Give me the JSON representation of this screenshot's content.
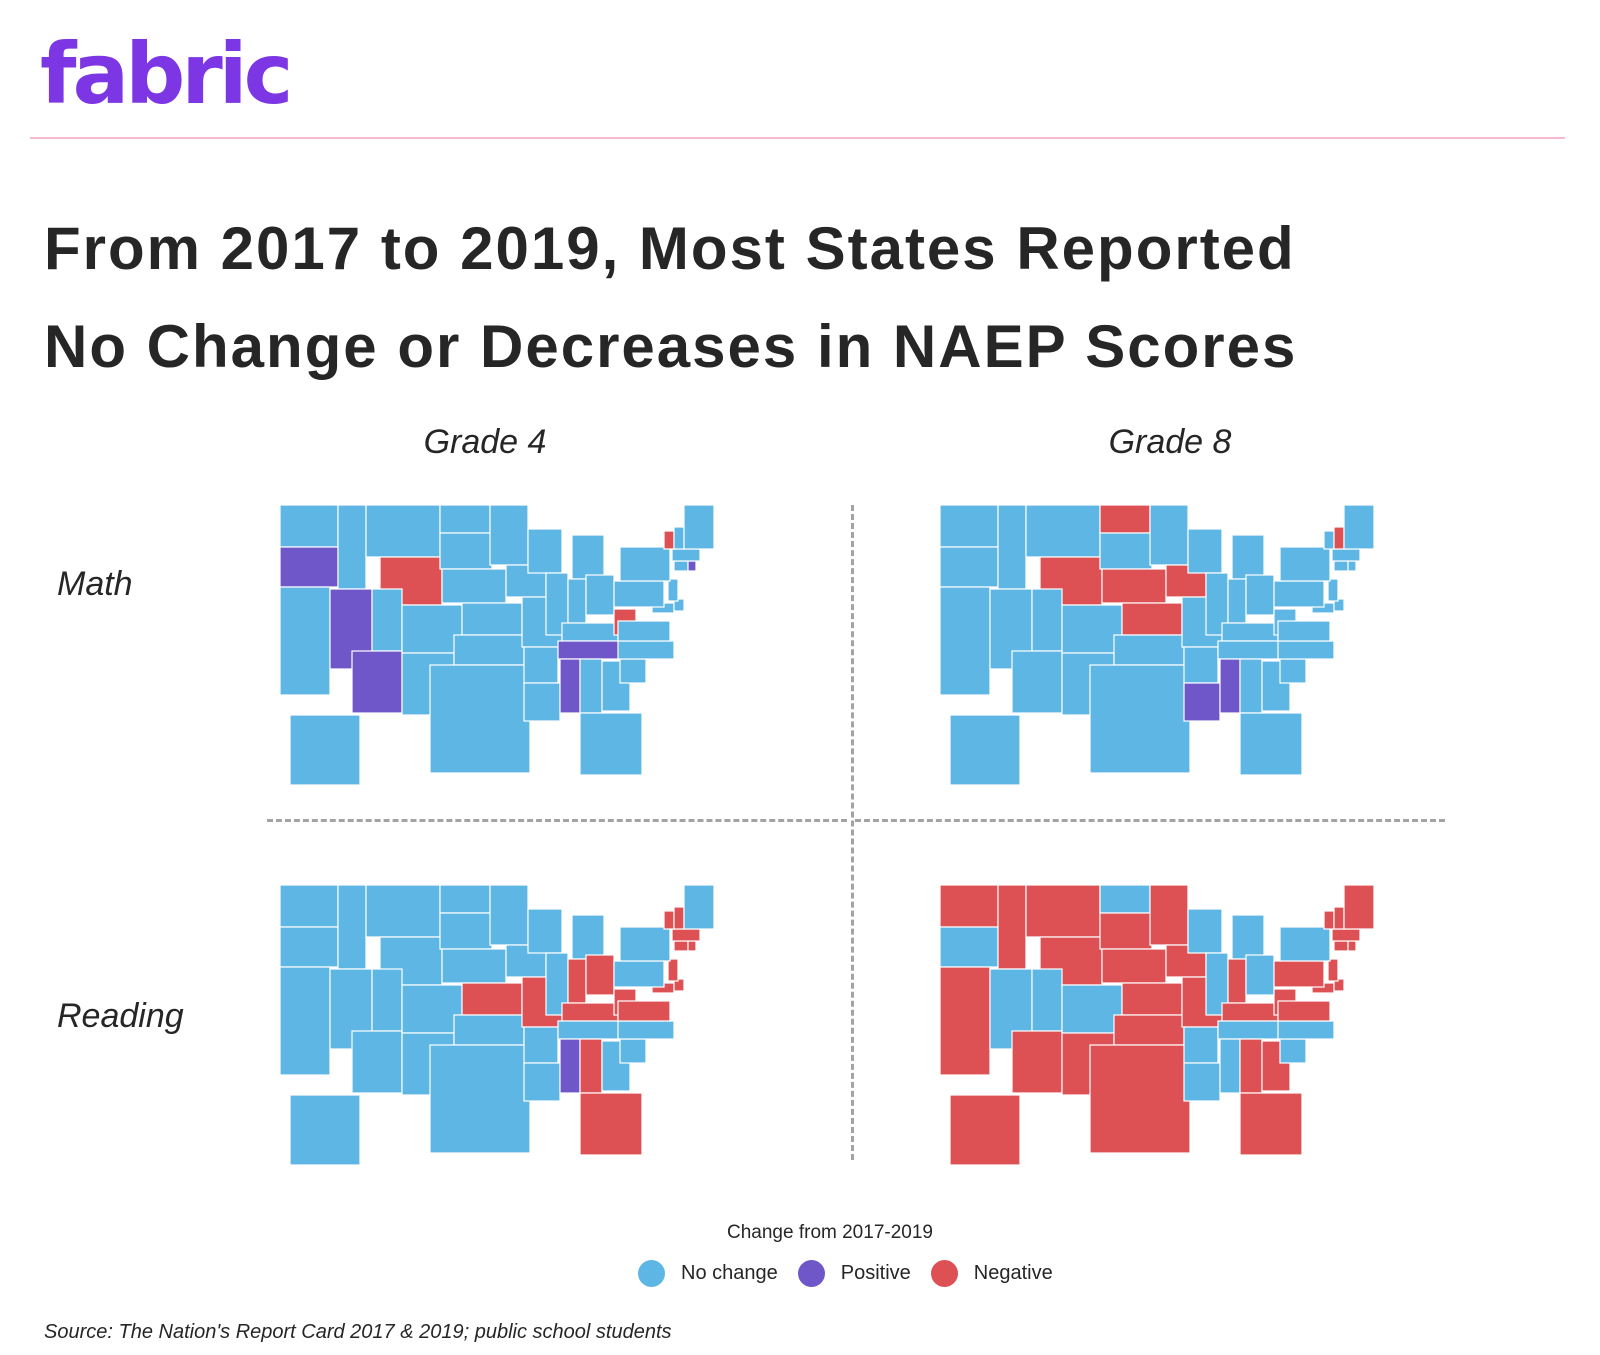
{
  "brand": {
    "logo_text": "fabric",
    "logo_color": "#7d36e4",
    "rule_color": "#f7b8d0"
  },
  "title": "From 2017 to 2019, Most States Reported No Change or Decreases in NAEP Scores",
  "columns": [
    "Grade 4",
    "Grade 8"
  ],
  "rows": [
    "Math",
    "Reading"
  ],
  "legend": {
    "title": "Change from 2017-2019",
    "items": [
      {
        "key": "none",
        "label": "No change",
        "color": "#5eb6e4"
      },
      {
        "key": "pos",
        "label": "Positive",
        "color": "#6f57c9"
      },
      {
        "key": "neg",
        "label": "Negative",
        "color": "#dd5054"
      }
    ]
  },
  "maps": [
    {
      "row": "Math",
      "column": "Grade 4",
      "positive": [
        "OR",
        "NV",
        "AZ",
        "MS",
        "TN",
        "RI"
      ],
      "negative": [
        "WY",
        "WV",
        "VT"
      ]
    },
    {
      "row": "Math",
      "column": "Grade 8",
      "positive": [
        "LA",
        "MS"
      ],
      "negative": [
        "ND",
        "WY",
        "NE",
        "KS",
        "IA",
        "NH"
      ]
    },
    {
      "row": "Reading",
      "column": "Grade 4",
      "positive": [
        "MS"
      ],
      "negative": [
        "KS",
        "MO",
        "IN",
        "OH",
        "KY",
        "WV",
        "VA",
        "MD",
        "DE",
        "NJ",
        "AL",
        "FL",
        "VT",
        "NH",
        "MA",
        "CT",
        "RI"
      ]
    },
    {
      "row": "Reading",
      "column": "Grade 8",
      "positive": [],
      "negative": [
        "WA",
        "ID",
        "MT",
        "WY",
        "SD",
        "NE",
        "KS",
        "OK",
        "TX",
        "MN",
        "IA",
        "MO",
        "CA",
        "AZ",
        "NM",
        "IN",
        "KY",
        "WV",
        "VA",
        "MD",
        "DE",
        "PA",
        "NJ",
        "AL",
        "GA",
        "FL",
        "VT",
        "NH",
        "ME",
        "MA",
        "CT",
        "RI",
        "AK"
      ]
    }
  ],
  "source": "Source: The Nation's Report Card 2017 & 2019; public school students"
}
